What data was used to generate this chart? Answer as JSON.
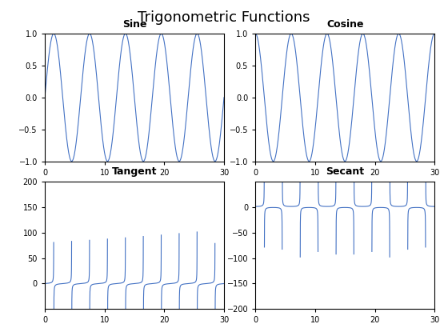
{
  "title": "Trigonometric Functions",
  "subplot_titles": [
    "Sine",
    "Cosine",
    "Tangent",
    "Secant"
  ],
  "x_start": 0,
  "x_end": 30,
  "n_points": 10000,
  "omega": 1.0471975511965976,
  "line_color": "#4472C4",
  "line_width": 0.8,
  "ylim_sine": [
    -1,
    1
  ],
  "ylim_cosine": [
    -1,
    1
  ],
  "ylim_tangent": [
    -50,
    200
  ],
  "ylim_secant": [
    -200,
    50
  ],
  "xlim": [
    0,
    30
  ],
  "xticks": [
    0,
    10,
    20,
    30
  ],
  "title_fontsize": 13,
  "subplot_title_fontsize": 9,
  "tick_fontsize": 7,
  "background_color": "#ffffff",
  "clip_value": 200
}
